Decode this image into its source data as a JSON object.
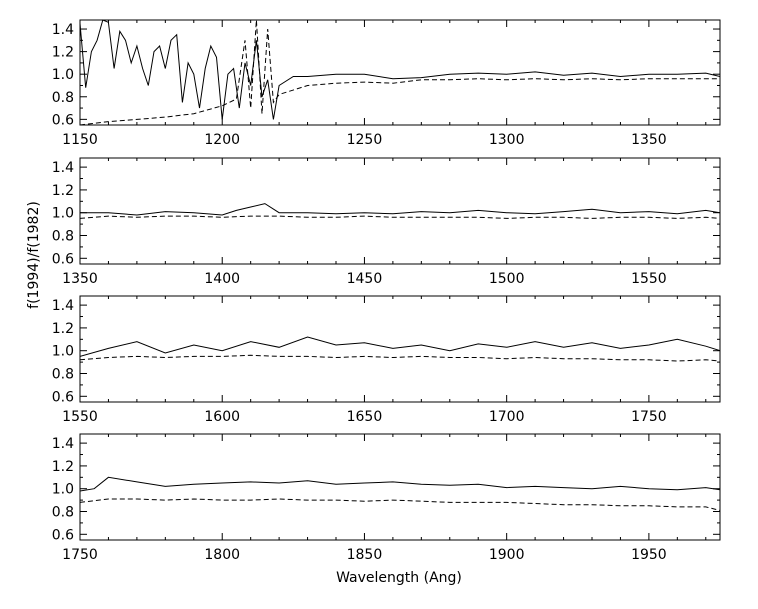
{
  "figure": {
    "ylabel": "f(1994)/f(1982)",
    "xlabel": "Wavelength (Ang)"
  },
  "chart_data": [
    {
      "type": "line",
      "xlim": [
        1150,
        1375
      ],
      "ylim": [
        0.55,
        1.48
      ],
      "xticks": [
        1150,
        1200,
        1250,
        1300,
        1350
      ],
      "xtick_labels": [
        "1150",
        "1200",
        "1250",
        "1300",
        "1350"
      ],
      "yticks": [
        0.6,
        0.8,
        1.0,
        1.2,
        1.4
      ],
      "ytick_labels": [
        "0.6",
        "0.8",
        "1.0",
        "1.2",
        "1.4"
      ],
      "series": [
        {
          "style": "solid",
          "x": [
            1150,
            1152,
            1154,
            1156,
            1158,
            1160,
            1162,
            1164,
            1166,
            1168,
            1170,
            1172,
            1174,
            1176,
            1178,
            1180,
            1182,
            1184,
            1186,
            1188,
            1190,
            1192,
            1194,
            1196,
            1198,
            1200,
            1202,
            1204,
            1206,
            1208,
            1210,
            1212,
            1214,
            1216,
            1218,
            1220,
            1225,
            1230,
            1240,
            1250,
            1260,
            1270,
            1280,
            1290,
            1300,
            1310,
            1320,
            1330,
            1340,
            1350,
            1360,
            1370,
            1375
          ],
          "y": [
            1.45,
            0.88,
            1.2,
            1.3,
            1.48,
            1.46,
            1.05,
            1.38,
            1.3,
            1.1,
            1.25,
            1.05,
            0.9,
            1.2,
            1.25,
            1.05,
            1.3,
            1.35,
            0.75,
            1.1,
            1.0,
            0.7,
            1.05,
            1.25,
            1.15,
            0.6,
            1.0,
            1.05,
            0.7,
            1.1,
            0.9,
            1.3,
            0.8,
            0.95,
            0.6,
            0.9,
            0.98,
            0.98,
            1.0,
            1.0,
            0.96,
            0.97,
            1.0,
            1.01,
            1.0,
            1.02,
            0.99,
            1.01,
            0.98,
            1.0,
            1.0,
            1.01,
            0.98
          ]
        },
        {
          "style": "dashed",
          "x": [
            1150,
            1160,
            1170,
            1180,
            1190,
            1200,
            1205,
            1208,
            1210,
            1212,
            1214,
            1216,
            1218,
            1220,
            1230,
            1240,
            1250,
            1260,
            1270,
            1280,
            1290,
            1300,
            1310,
            1320,
            1330,
            1340,
            1350,
            1360,
            1370,
            1375
          ],
          "y": [
            0.55,
            0.58,
            0.6,
            0.62,
            0.65,
            0.72,
            0.78,
            1.3,
            0.7,
            1.48,
            0.65,
            1.4,
            0.75,
            0.82,
            0.9,
            0.92,
            0.93,
            0.92,
            0.95,
            0.95,
            0.96,
            0.95,
            0.96,
            0.95,
            0.96,
            0.95,
            0.96,
            0.96,
            0.96,
            0.96
          ]
        }
      ]
    },
    {
      "type": "line",
      "xlim": [
        1350,
        1575
      ],
      "ylim": [
        0.55,
        1.48
      ],
      "xticks": [
        1350,
        1400,
        1450,
        1500,
        1550
      ],
      "xtick_labels": [
        "1350",
        "1400",
        "1450",
        "1500",
        "1550"
      ],
      "yticks": [
        0.6,
        0.8,
        1.0,
        1.2,
        1.4
      ],
      "ytick_labels": [
        "0.6",
        "0.8",
        "1.0",
        "1.2",
        "1.4"
      ],
      "series": [
        {
          "style": "solid",
          "x": [
            1350,
            1360,
            1370,
            1380,
            1390,
            1400,
            1405,
            1410,
            1415,
            1420,
            1430,
            1440,
            1450,
            1460,
            1470,
            1480,
            1490,
            1500,
            1510,
            1520,
            1530,
            1540,
            1550,
            1560,
            1570,
            1575
          ],
          "y": [
            1.0,
            1.0,
            0.98,
            1.01,
            1.0,
            0.98,
            1.02,
            1.05,
            1.08,
            1.0,
            1.0,
            0.99,
            1.0,
            0.99,
            1.01,
            1.0,
            1.02,
            1.0,
            0.99,
            1.01,
            1.03,
            1.0,
            1.01,
            0.99,
            1.02,
            1.0
          ]
        },
        {
          "style": "dashed",
          "x": [
            1350,
            1360,
            1370,
            1380,
            1390,
            1400,
            1410,
            1420,
            1430,
            1440,
            1450,
            1460,
            1470,
            1480,
            1490,
            1500,
            1510,
            1520,
            1530,
            1540,
            1550,
            1560,
            1570,
            1575
          ],
          "y": [
            0.95,
            0.97,
            0.96,
            0.97,
            0.97,
            0.96,
            0.97,
            0.97,
            0.96,
            0.96,
            0.97,
            0.96,
            0.96,
            0.96,
            0.96,
            0.95,
            0.96,
            0.96,
            0.95,
            0.96,
            0.96,
            0.95,
            0.96,
            0.95
          ]
        }
      ]
    },
    {
      "type": "line",
      "xlim": [
        1550,
        1775
      ],
      "ylim": [
        0.55,
        1.48
      ],
      "xticks": [
        1550,
        1600,
        1650,
        1700,
        1750
      ],
      "xtick_labels": [
        "1550",
        "1600",
        "1650",
        "1700",
        "1750"
      ],
      "yticks": [
        0.6,
        0.8,
        1.0,
        1.2,
        1.4
      ],
      "ytick_labels": [
        "0.6",
        "0.8",
        "1.0",
        "1.2",
        "1.4"
      ],
      "series": [
        {
          "style": "solid",
          "x": [
            1550,
            1560,
            1570,
            1580,
            1590,
            1600,
            1610,
            1620,
            1630,
            1640,
            1650,
            1660,
            1670,
            1680,
            1690,
            1700,
            1710,
            1720,
            1730,
            1740,
            1750,
            1760,
            1770,
            1775
          ],
          "y": [
            0.95,
            1.02,
            1.08,
            0.98,
            1.05,
            1.0,
            1.08,
            1.03,
            1.12,
            1.05,
            1.07,
            1.02,
            1.05,
            1.0,
            1.06,
            1.03,
            1.08,
            1.03,
            1.07,
            1.02,
            1.05,
            1.1,
            1.04,
            1.0
          ]
        },
        {
          "style": "dashed",
          "x": [
            1550,
            1560,
            1570,
            1580,
            1590,
            1600,
            1610,
            1620,
            1630,
            1640,
            1650,
            1660,
            1670,
            1680,
            1690,
            1700,
            1710,
            1720,
            1730,
            1740,
            1750,
            1760,
            1770,
            1775
          ],
          "y": [
            0.92,
            0.94,
            0.95,
            0.94,
            0.95,
            0.95,
            0.96,
            0.95,
            0.95,
            0.94,
            0.95,
            0.94,
            0.95,
            0.94,
            0.94,
            0.93,
            0.94,
            0.93,
            0.93,
            0.92,
            0.92,
            0.91,
            0.92,
            0.91
          ]
        }
      ]
    },
    {
      "type": "line",
      "xlim": [
        1750,
        1975
      ],
      "ylim": [
        0.55,
        1.48
      ],
      "xticks": [
        1750,
        1800,
        1850,
        1900,
        1950
      ],
      "xtick_labels": [
        "1750",
        "1800",
        "1850",
        "1900",
        "1950"
      ],
      "yticks": [
        0.6,
        0.8,
        1.0,
        1.2,
        1.4
      ],
      "ytick_labels": [
        "0.6",
        "0.8",
        "1.0",
        "1.2",
        "1.4"
      ],
      "series": [
        {
          "style": "solid",
          "x": [
            1750,
            1755,
            1760,
            1770,
            1780,
            1790,
            1800,
            1810,
            1820,
            1830,
            1840,
            1850,
            1860,
            1870,
            1880,
            1890,
            1900,
            1910,
            1920,
            1930,
            1940,
            1950,
            1960,
            1970,
            1975
          ],
          "y": [
            0.98,
            1.0,
            1.1,
            1.06,
            1.02,
            1.04,
            1.05,
            1.06,
            1.05,
            1.07,
            1.04,
            1.05,
            1.06,
            1.04,
            1.03,
            1.04,
            1.01,
            1.02,
            1.01,
            1.0,
            1.02,
            1.0,
            0.99,
            1.01,
            0.99
          ]
        },
        {
          "style": "dashed",
          "x": [
            1750,
            1760,
            1770,
            1780,
            1790,
            1800,
            1810,
            1820,
            1830,
            1840,
            1850,
            1860,
            1870,
            1880,
            1890,
            1900,
            1910,
            1920,
            1930,
            1940,
            1950,
            1960,
            1970,
            1975
          ],
          "y": [
            0.88,
            0.91,
            0.91,
            0.9,
            0.91,
            0.9,
            0.9,
            0.91,
            0.9,
            0.9,
            0.89,
            0.9,
            0.89,
            0.88,
            0.88,
            0.88,
            0.87,
            0.86,
            0.86,
            0.85,
            0.85,
            0.84,
            0.84,
            0.81
          ]
        }
      ]
    }
  ]
}
